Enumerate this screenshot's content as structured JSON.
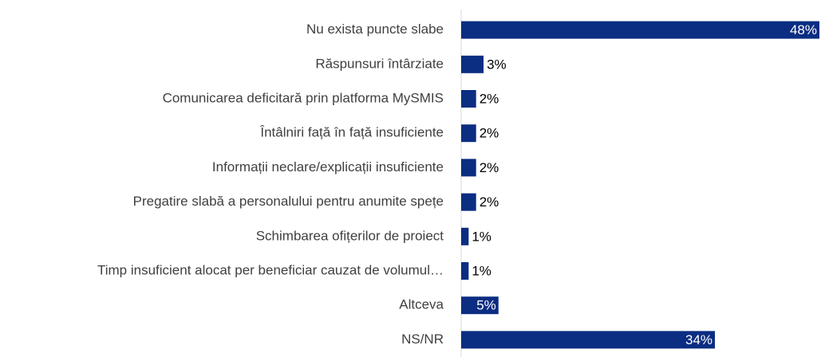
{
  "chart_data": {
    "type": "bar",
    "orientation": "horizontal",
    "color": "#0b2d82",
    "categories": [
      "Nu exista puncte slabe",
      "Răspunsuri întârziate",
      "Comunicarea deficitară prin platforma MySMIS",
      "Întâlniri față în față insuficiente",
      "Informații neclare/explicații insuficiente",
      "Pregatire slabă a personalului pentru anumite spețe",
      "Schimbarea ofițerilor de proiect",
      "Timp insuficient alocat per beneficiar cauzat de volumul…",
      "Altceva",
      "NS/NR"
    ],
    "values": [
      48,
      3,
      2,
      2,
      2,
      2,
      1,
      1,
      5,
      34
    ],
    "value_labels": [
      "48%",
      "3%",
      "2%",
      "2%",
      "2%",
      "2%",
      "1%",
      "1%",
      "5%",
      "34%"
    ]
  }
}
